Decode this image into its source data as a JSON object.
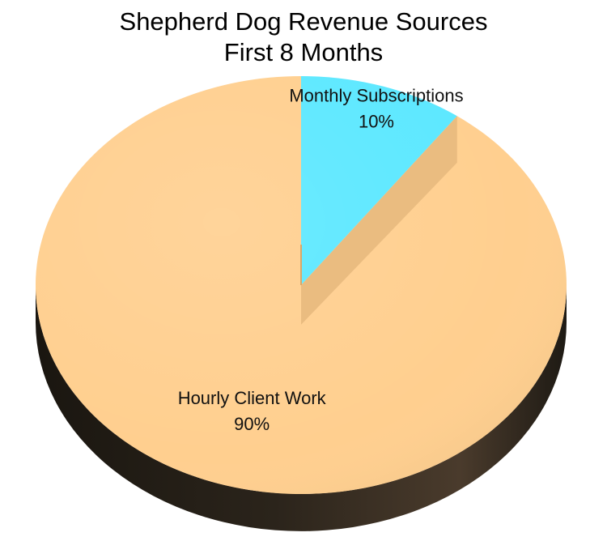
{
  "chart_data": {
    "type": "pie",
    "title": "Shepherd Dog Revenue Sources",
    "subtitle": "First 8 Months",
    "slices": [
      {
        "label": "Monthly Subscriptions",
        "value": 10,
        "value_label": "10%",
        "color": "#5ce8ff"
      },
      {
        "label": "Hourly Client Work",
        "value": 90,
        "value_label": "90%",
        "color": "#ffcf8f"
      }
    ],
    "start_angle": "12 o'clock",
    "direction": "clockwise",
    "style": "3d-tilted"
  }
}
